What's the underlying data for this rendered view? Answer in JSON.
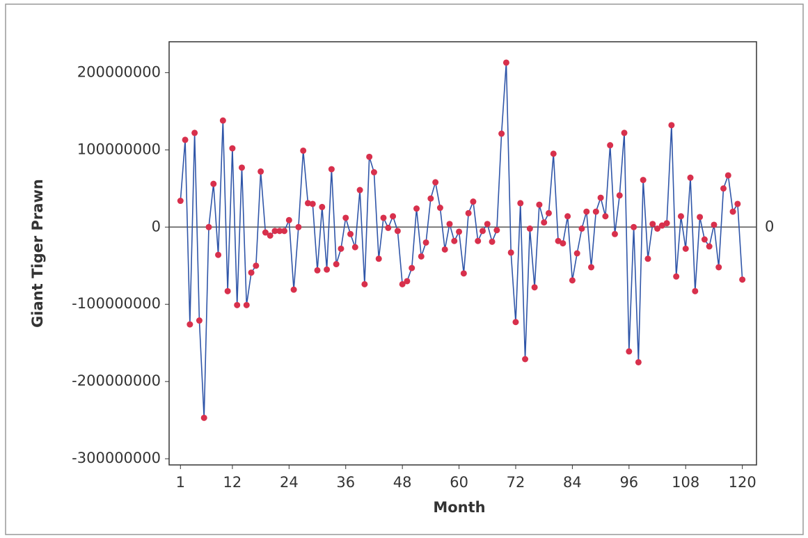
{
  "chart_data": {
    "type": "line",
    "x_label": "Month",
    "y_label": "Giant Tiger Prawn",
    "x": [
      1,
      2,
      3,
      4,
      5,
      6,
      7,
      8,
      9,
      10,
      11,
      12,
      13,
      14,
      15,
      16,
      17,
      18,
      19,
      20,
      21,
      22,
      23,
      24,
      25,
      26,
      27,
      28,
      29,
      30,
      31,
      32,
      33,
      34,
      35,
      36,
      37,
      38,
      39,
      40,
      41,
      42,
      43,
      44,
      45,
      46,
      47,
      48,
      49,
      50,
      51,
      52,
      53,
      54,
      55,
      56,
      57,
      58,
      59,
      60,
      61,
      62,
      63,
      64,
      65,
      66,
      67,
      68,
      69,
      70,
      71,
      72,
      73,
      74,
      75,
      76,
      77,
      78,
      79,
      80,
      81,
      82,
      83,
      84,
      85,
      86,
      87,
      88,
      89,
      90,
      91,
      92,
      93,
      94,
      95,
      96,
      97,
      98,
      99,
      100,
      101,
      102,
      103,
      104,
      105,
      106,
      107,
      108,
      109,
      110,
      111,
      112,
      113,
      114,
      115,
      116,
      117,
      118,
      119,
      120
    ],
    "series": [
      {
        "name": "Giant Tiger Prawn",
        "color": "#2f55a8",
        "marker_color": "#d8304c",
        "values": [
          34000000,
          113000000,
          -126000000,
          122000000,
          -121000000,
          -247000000,
          0,
          56000000,
          -36000000,
          138000000,
          -83000000,
          102000000,
          -101000000,
          77000000,
          -101000000,
          -59000000,
          -50000000,
          72000000,
          -7000000,
          -11000000,
          -5000000,
          -5000000,
          -5000000,
          9000000,
          -81000000,
          0,
          99000000,
          31000000,
          30000000,
          -56000000,
          26000000,
          -55000000,
          75000000,
          -48000000,
          -28000000,
          12000000,
          -9000000,
          -26000000,
          48000000,
          -74000000,
          91000000,
          71000000,
          -41000000,
          12000000,
          -1000000,
          14000000,
          -5000000,
          -74000000,
          -70000000,
          -53000000,
          24000000,
          -38000000,
          -20000000,
          37000000,
          58000000,
          25000000,
          -29000000,
          4000000,
          -18000000,
          -6000000,
          -60000000,
          18000000,
          33000000,
          -18000000,
          -5000000,
          4000000,
          -19000000,
          -4000000,
          121000000,
          213000000,
          -33000000,
          -123000000,
          31000000,
          -171000000,
          -2000000,
          -78000000,
          29000000,
          6000000,
          18000000,
          95000000,
          -18000000,
          -21000000,
          14000000,
          -69000000,
          -34000000,
          -2000000,
          20000000,
          -52000000,
          20000000,
          38000000,
          14000000,
          106000000,
          -9000000,
          41000000,
          122000000,
          -161000000,
          0,
          -175000000,
          61000000,
          -41000000,
          4000000,
          -2000000,
          2000000,
          5000000,
          132000000,
          -64000000,
          14000000,
          -28000000,
          64000000,
          -83000000,
          13000000,
          -16000000,
          -25000000,
          3000000,
          -52000000,
          50000000,
          67000000,
          20000000,
          30000000,
          -68000000
        ]
      }
    ],
    "xlim": [
      -1.4,
      123
    ],
    "xticks": [
      1,
      12,
      24,
      36,
      48,
      60,
      72,
      84,
      96,
      108,
      120
    ],
    "ylim": [
      -308000000,
      240000000
    ],
    "yticks": [
      -300000000,
      -200000000,
      -100000000,
      0,
      100000000,
      200000000
    ],
    "hline": 0
  }
}
